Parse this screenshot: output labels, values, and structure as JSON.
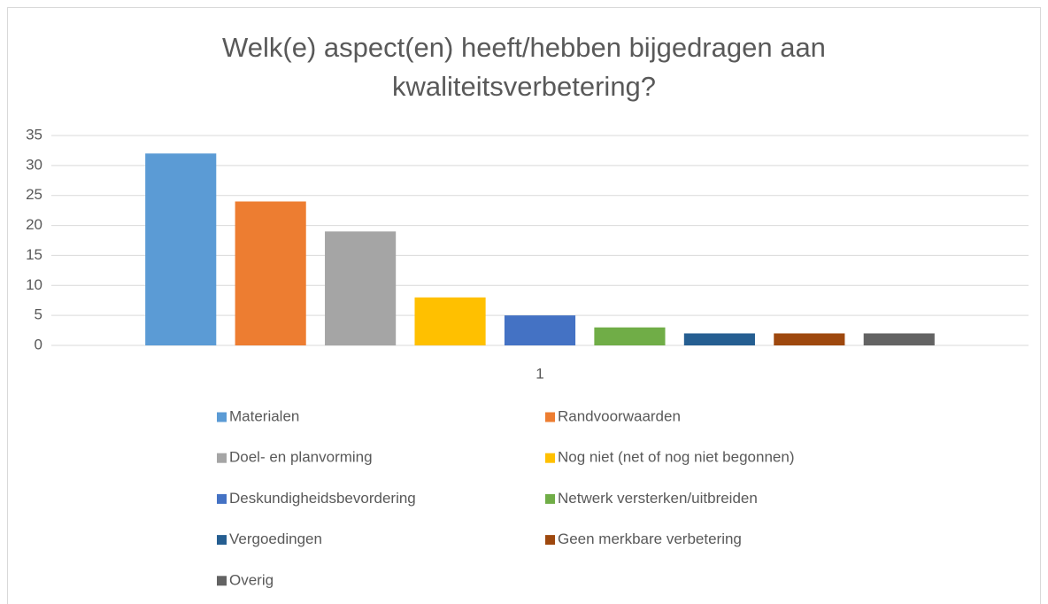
{
  "chart_data": {
    "type": "bar",
    "title": "Welk(e) aspect(en) heeft/hebben bijgedragen aan kwaliteitsverbetering?",
    "categories": [
      "1"
    ],
    "series": [
      {
        "name": "Materialen",
        "color": "#5b9bd5",
        "values": [
          32
        ]
      },
      {
        "name": "Randvoorwaarden",
        "color": "#ed7d31",
        "values": [
          24
        ]
      },
      {
        "name": "Doel- en planvorming",
        "color": "#a5a5a5",
        "values": [
          19
        ]
      },
      {
        "name": "Nog niet (net of nog niet begonnen)",
        "color": "#ffc000",
        "values": [
          8
        ]
      },
      {
        "name": "Deskundigheidsbevordering",
        "color": "#4472c4",
        "values": [
          5
        ]
      },
      {
        "name": "Netwerk versterken/uitbreiden",
        "color": "#70ad47",
        "values": [
          3
        ]
      },
      {
        "name": "Vergoedingen",
        "color": "#255e91",
        "values": [
          2
        ]
      },
      {
        "name": "Geen merkbare verbetering",
        "color": "#9e480e",
        "values": [
          2
        ]
      },
      {
        "name": "Overig",
        "color": "#636363",
        "values": [
          2
        ]
      }
    ],
    "ylim": [
      0,
      35
    ],
    "yticks": [
      0,
      5,
      10,
      15,
      20,
      25,
      30,
      35
    ],
    "grid": true,
    "legend": "bottom"
  }
}
